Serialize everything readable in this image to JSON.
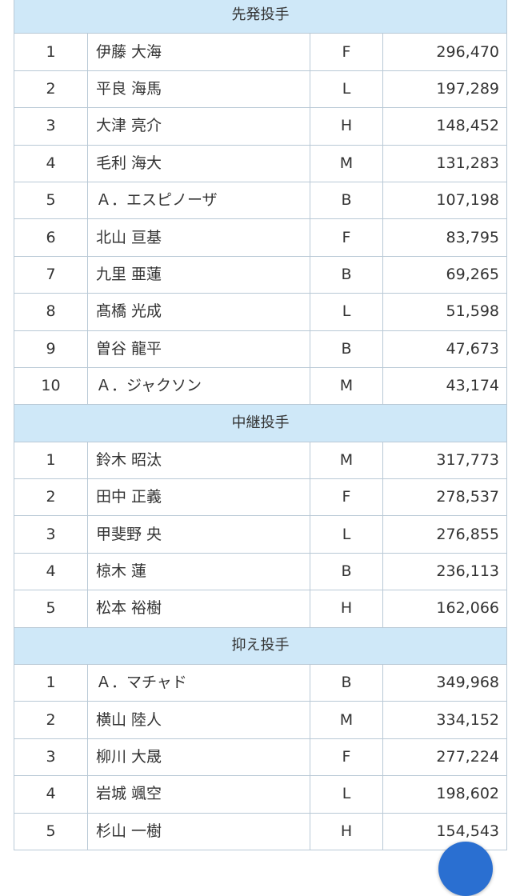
{
  "sections": [
    {
      "title": "先発投手",
      "rows": [
        {
          "rank": "1",
          "name": "伊藤 大海",
          "team": "F",
          "votes": "296,470"
        },
        {
          "rank": "2",
          "name": "平良 海馬",
          "team": "L",
          "votes": "197,289"
        },
        {
          "rank": "3",
          "name": "大津 亮介",
          "team": "H",
          "votes": "148,452"
        },
        {
          "rank": "4",
          "name": "毛利 海大",
          "team": "M",
          "votes": "131,283"
        },
        {
          "rank": "5",
          "name": "Ａ．エスピノーザ",
          "team": "B",
          "votes": "107,198"
        },
        {
          "rank": "6",
          "name": "北山 亘基",
          "team": "F",
          "votes": "83,795"
        },
        {
          "rank": "7",
          "name": "九里 亜蓮",
          "team": "B",
          "votes": "69,265"
        },
        {
          "rank": "8",
          "name": "髙橋 光成",
          "team": "L",
          "votes": "51,598"
        },
        {
          "rank": "9",
          "name": "曽谷 龍平",
          "team": "B",
          "votes": "47,673"
        },
        {
          "rank": "10",
          "name": "Ａ．ジャクソン",
          "team": "M",
          "votes": "43,174"
        }
      ]
    },
    {
      "title": "中継投手",
      "rows": [
        {
          "rank": "1",
          "name": "鈴木 昭汰",
          "team": "M",
          "votes": "317,773"
        },
        {
          "rank": "2",
          "name": "田中 正義",
          "team": "F",
          "votes": "278,537"
        },
        {
          "rank": "3",
          "name": "甲斐野 央",
          "team": "L",
          "votes": "276,855"
        },
        {
          "rank": "4",
          "name": "椋木 蓮",
          "team": "B",
          "votes": "236,113"
        },
        {
          "rank": "5",
          "name": "松本 裕樹",
          "team": "H",
          "votes": "162,066"
        }
      ]
    },
    {
      "title": "抑え投手",
      "rows": [
        {
          "rank": "1",
          "name": "Ａ．マチャド",
          "team": "B",
          "votes": "349,968"
        },
        {
          "rank": "2",
          "name": "横山 陸人",
          "team": "M",
          "votes": "334,152"
        },
        {
          "rank": "3",
          "name": "柳川 大晟",
          "team": "F",
          "votes": "277,224"
        },
        {
          "rank": "4",
          "name": "岩城 颯空",
          "team": "L",
          "votes": "198,602"
        },
        {
          "rank": "5",
          "name": "杉山 一樹",
          "team": "H",
          "votes": "154,543"
        }
      ]
    }
  ],
  "colors": {
    "section_header_bg": "#cfe8f8",
    "border": "#b9c9d6",
    "fab": "#2a6fd1"
  }
}
